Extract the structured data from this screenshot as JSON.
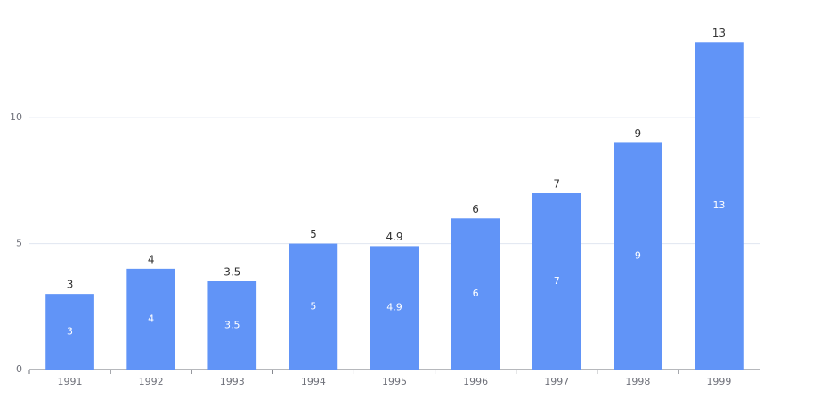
{
  "chart_data": {
    "type": "bar",
    "categories": [
      "1991",
      "1992",
      "1993",
      "1994",
      "1995",
      "1996",
      "1997",
      "1998",
      "1999"
    ],
    "values": [
      3,
      4,
      3.5,
      5,
      4.9,
      6,
      7,
      9,
      13
    ],
    "color": "#6194f7",
    "ylim": [
      0,
      14
    ],
    "yticks": [
      0,
      5,
      10
    ],
    "grid": true
  }
}
